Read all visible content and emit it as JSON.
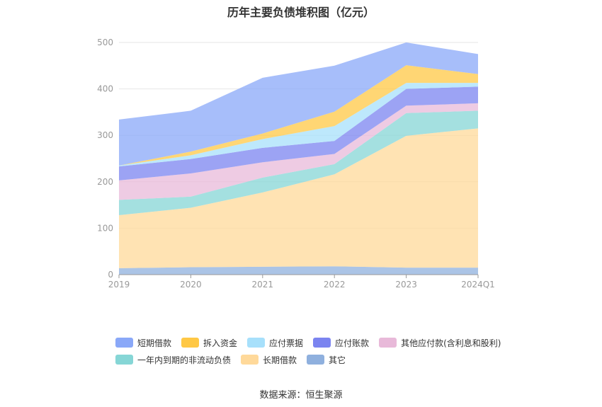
{
  "chart_data": {
    "type": "area",
    "title": "历年主要负债堆积图（亿元）",
    "categories": [
      "2019",
      "2020",
      "2021",
      "2022",
      "2023",
      "2024Q1"
    ],
    "ylim": [
      0,
      500
    ],
    "yticks": [
      0,
      100,
      200,
      300,
      400,
      500
    ],
    "grid": true,
    "legend_position": "bottom",
    "series": [
      {
        "name": "其它",
        "color": "#8fb0de",
        "values": [
          14,
          16,
          17,
          18,
          15,
          15
        ]
      },
      {
        "name": "长期借款",
        "color": "#ffd99a",
        "values": [
          114,
          128,
          160,
          198,
          284,
          300
        ]
      },
      {
        "name": "一年内到期的非流动负债",
        "color": "#86d6d6",
        "values": [
          33,
          24,
          32,
          22,
          49,
          38
        ]
      },
      {
        "name": "其他应付款(含利息和股利)",
        "color": "#e8b9d9",
        "values": [
          42,
          50,
          33,
          22,
          16,
          16
        ]
      },
      {
        "name": "应付账款",
        "color": "#7b84f0",
        "values": [
          30,
          31,
          31,
          28,
          36,
          36
        ]
      },
      {
        "name": "应付票据",
        "color": "#a7e0fb",
        "values": [
          2,
          8,
          19,
          32,
          13,
          8
        ]
      },
      {
        "name": "拆入资金",
        "color": "#ffc845",
        "values": [
          0,
          8,
          12,
          31,
          38,
          19
        ]
      },
      {
        "name": "短期借款",
        "color": "#8aa8f8",
        "values": [
          99,
          88,
          120,
          99,
          49,
          43
        ]
      }
    ]
  },
  "source": "数据来源：恒生聚源"
}
